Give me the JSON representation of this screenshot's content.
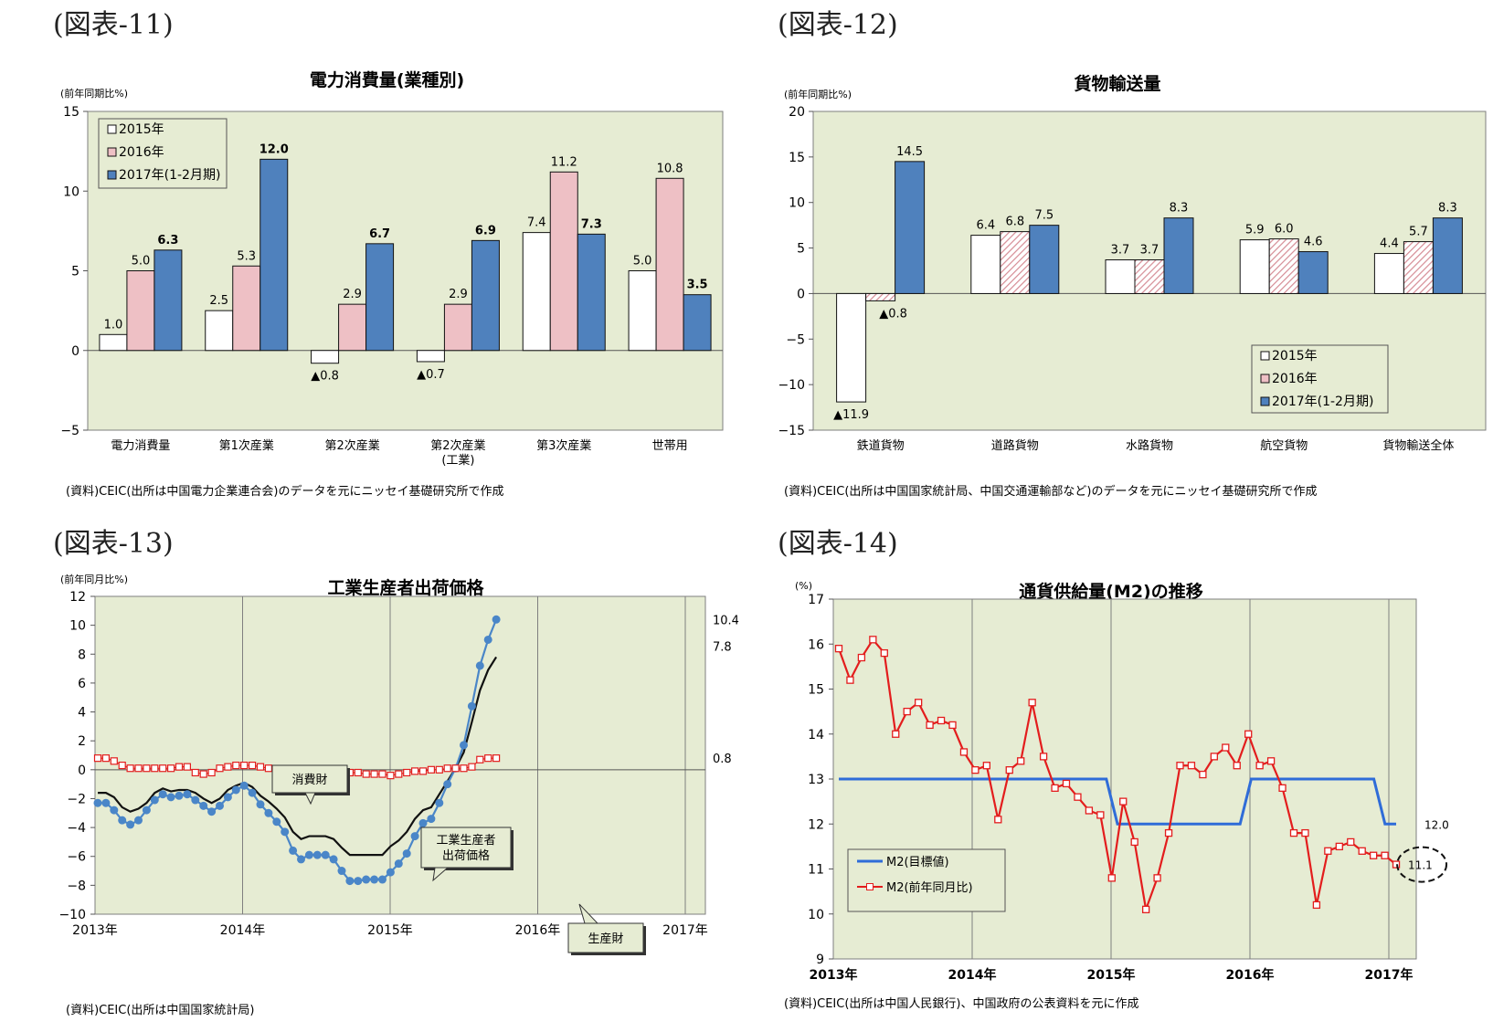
{
  "colors": {
    "bg": "#e6ecd3",
    "c2015": "#ffffff",
    "c2016": "#eec0c5",
    "c2017": "#4f81bd",
    "hatch": "#d58c95",
    "grid": "#7f7f7f",
    "red": "#e31d1d",
    "blue": "#2f6cd8",
    "black": "#111111",
    "steel": "#4a86c8",
    "callout": "#e6ecd3"
  },
  "figures": [
    {
      "label": "(図表-11)"
    },
    {
      "label": "(図表-12)"
    },
    {
      "label": "(図表-13)"
    },
    {
      "label": "(図表-14)"
    }
  ],
  "chart_data": [
    {
      "type": "bar",
      "title": "電力消費量(業種別)",
      "unit_label": "(前年同期比%)",
      "ylim": [
        -5,
        15
      ],
      "yticks": [
        -5,
        0,
        5,
        10,
        15
      ],
      "categories": [
        "電力消費量",
        "第1次産業",
        "第2次産業",
        "第2次産業\n(工業)",
        "第3次産業",
        "世帯用"
      ],
      "series": [
        {
          "name": "2015年",
          "values": [
            1.0,
            2.5,
            -0.8,
            -0.7,
            7.4,
            5.0
          ],
          "labels": [
            "1.0",
            "2.5",
            "▲0.8",
            "▲0.7",
            "7.4",
            "5.0"
          ]
        },
        {
          "name": "2016年",
          "values": [
            5.0,
            5.3,
            2.9,
            2.9,
            11.2,
            10.8
          ],
          "labels": [
            "5.0",
            "5.3",
            "2.9",
            "2.9",
            "11.2",
            "10.8"
          ]
        },
        {
          "name": "2017年(1-2月期)",
          "values": [
            6.3,
            12.0,
            6.7,
            6.9,
            7.3,
            3.5
          ],
          "labels": [
            "6.3",
            "12.0",
            "6.7",
            "6.9",
            "7.3",
            "3.5"
          ]
        }
      ],
      "legend": "top-left",
      "source": "(資料)CEIC(出所は中国電力企業連合会)のデータを元にニッセイ基礎研究所で作成"
    },
    {
      "type": "bar",
      "title": "貨物輸送量",
      "unit_label": "(前年同期比%)",
      "ylim": [
        -15,
        20
      ],
      "yticks": [
        -15,
        -10,
        -5,
        0,
        5,
        10,
        15,
        20
      ],
      "categories": [
        "鉄道貨物",
        "道路貨物",
        "水路貨物",
        "航空貨物",
        "貨物輸送全体"
      ],
      "series": [
        {
          "name": "2015年",
          "values": [
            -11.9,
            6.4,
            3.7,
            5.9,
            4.4
          ],
          "labels": [
            "▲11.9",
            "6.4",
            "3.7",
            "5.9",
            "4.4"
          ]
        },
        {
          "name": "2016年",
          "values": [
            -0.8,
            6.8,
            3.7,
            6.0,
            5.7
          ],
          "labels": [
            "▲0.8",
            "6.8",
            "3.7",
            "6.0",
            "5.7"
          ]
        },
        {
          "name": "2017年(1-2月期)",
          "values": [
            14.5,
            7.5,
            8.3,
            4.6,
            8.3
          ],
          "labels": [
            "14.5",
            "7.5",
            "8.3",
            "4.6",
            "8.3"
          ]
        }
      ],
      "legend": "bottom-right",
      "source": "(資料)CEIC(出所は中国国家統計局、中国交通運輸部など)のデータを元にニッセイ基礎研究所で作成"
    },
    {
      "type": "line",
      "title": "工業生産者出荷価格",
      "unit_label": "(前年同月比%)",
      "ylim": [
        -10,
        12
      ],
      "yticks": [
        -10,
        -8,
        -6,
        -4,
        -2,
        0,
        2,
        4,
        6,
        8,
        10,
        12
      ],
      "xticks": [
        "2013年",
        "2014年",
        "2015年",
        "2016年",
        "2017年"
      ],
      "series": [
        {
          "name": "工業生産者出荷価格",
          "end_label": "7.8",
          "values": [
            -1.6,
            -1.6,
            -1.9,
            -2.6,
            -2.9,
            -2.7,
            -2.3,
            -1.6,
            -1.3,
            -1.5,
            -1.4,
            -1.4,
            -1.6,
            -2.0,
            -2.3,
            -2.0,
            -1.4,
            -1.1,
            -0.9,
            -1.2,
            -1.8,
            -2.2,
            -2.7,
            -3.3,
            -4.3,
            -4.8,
            -4.6,
            -4.6,
            -4.6,
            -4.8,
            -5.4,
            -5.9,
            -5.9,
            -5.9,
            -5.9,
            -5.9,
            -5.3,
            -4.9,
            -4.3,
            -3.4,
            -2.8,
            -2.6,
            -1.7,
            -0.8,
            0.1,
            1.2,
            3.3,
            5.5,
            6.9,
            7.8
          ]
        },
        {
          "name": "生産財",
          "end_label": "10.4",
          "values": [
            -2.3,
            -2.3,
            -2.8,
            -3.5,
            -3.8,
            -3.5,
            -2.8,
            -2.1,
            -1.7,
            -1.9,
            -1.8,
            -1.7,
            -2.1,
            -2.5,
            -2.9,
            -2.5,
            -1.9,
            -1.4,
            -1.1,
            -1.6,
            -2.4,
            -3.0,
            -3.6,
            -4.3,
            -5.6,
            -6.2,
            -5.9,
            -5.9,
            -5.9,
            -6.2,
            -7.0,
            -7.7,
            -7.7,
            -7.6,
            -7.6,
            -7.6,
            -7.1,
            -6.5,
            -5.8,
            -4.6,
            -3.7,
            -3.4,
            -2.3,
            -1.0,
            0.1,
            1.7,
            4.4,
            7.2,
            9.0,
            10.4
          ]
        },
        {
          "name": "消費財",
          "end_label": "0.8",
          "values": [
            0.8,
            0.8,
            0.6,
            0.3,
            0.1,
            0.1,
            0.1,
            0.1,
            0.1,
            0.1,
            0.2,
            0.2,
            -0.2,
            -0.3,
            -0.2,
            0.1,
            0.2,
            0.3,
            0.3,
            0.3,
            0.2,
            0.1,
            0.0,
            0.0,
            -0.1,
            -0.1,
            -0.2,
            -0.2,
            -0.2,
            -0.2,
            -0.3,
            -0.2,
            -0.2,
            -0.3,
            -0.3,
            -0.3,
            -0.4,
            -0.3,
            -0.2,
            -0.1,
            -0.1,
            0.0,
            0.0,
            0.1,
            0.1,
            0.1,
            0.2,
            0.7,
            0.8,
            0.8
          ]
        }
      ],
      "annotations": [
        "消費財",
        "工業生産者\n出荷価格",
        "生産財"
      ],
      "source": "(資料)CEIC(出所は中国国家統計局)"
    },
    {
      "type": "line",
      "title": "通貨供給量(M2)の推移",
      "unit_label": "(%)",
      "ylim": [
        9,
        17
      ],
      "yticks": [
        9,
        10,
        11,
        12,
        13,
        14,
        15,
        16,
        17
      ],
      "xticks": [
        "2013年",
        "2014年",
        "2015年",
        "2016年",
        "2017年"
      ],
      "series": [
        {
          "name": "M2(目標値)",
          "end_label": "12.0",
          "values": [
            13,
            13,
            13,
            13,
            13,
            13,
            13,
            13,
            13,
            13,
            13,
            13,
            13,
            13,
            13,
            13,
            13,
            13,
            13,
            13,
            13,
            13,
            13,
            13,
            13,
            12,
            12,
            12,
            12,
            12,
            12,
            12,
            12,
            12,
            12,
            12,
            12,
            13,
            13,
            13,
            13,
            13,
            13,
            13,
            13,
            13,
            13,
            13,
            13,
            12,
            12
          ]
        },
        {
          "name": "M2(前年同月比)",
          "end_label": "11.1",
          "values": [
            15.9,
            15.2,
            15.7,
            16.1,
            15.8,
            14.0,
            14.5,
            14.7,
            14.2,
            14.3,
            14.2,
            13.6,
            13.2,
            13.3,
            12.1,
            13.2,
            13.4,
            14.7,
            13.5,
            12.8,
            12.9,
            12.6,
            12.3,
            12.2,
            10.8,
            12.5,
            11.6,
            10.1,
            10.8,
            11.8,
            13.3,
            13.3,
            13.1,
            13.5,
            13.7,
            13.3,
            14.0,
            13.3,
            13.4,
            12.8,
            11.8,
            11.8,
            10.2,
            11.4,
            11.5,
            11.6,
            11.4,
            11.3,
            11.3,
            11.1
          ]
        }
      ],
      "source": "(資料)CEIC(出所は中国人民銀行)、中国政府の公表資料を元に作成"
    }
  ]
}
